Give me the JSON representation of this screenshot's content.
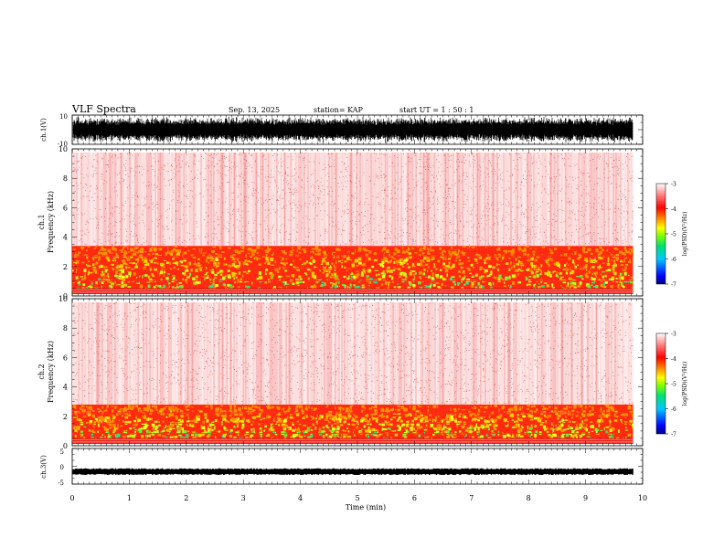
{
  "header": {
    "title": "VLF Spectra",
    "date": "Sep. 13, 2025",
    "station": "station= KAP",
    "start": "start  UT =   1 : 50 : 1"
  },
  "chart_data": [
    {
      "type": "line",
      "name": "ch1-waveform",
      "ylabel": "ch.1(V)",
      "ylim": [
        -10,
        10
      ],
      "ytick_labels": [
        "10",
        "-10"
      ],
      "xlim": [
        0,
        10
      ],
      "x_data_end": 9.83,
      "description_values": {
        "typical_min": -9,
        "typical_max": 9
      }
    },
    {
      "type": "heatmap",
      "name": "ch1-spectrogram",
      "ylabel": "ch.1",
      "ylabel2": "Frequency (kHz)",
      "ylim": [
        0,
        10
      ],
      "ytick_labels": [
        "0",
        "2",
        "4",
        "6",
        "8",
        "10"
      ],
      "yticks": [
        0,
        2,
        4,
        6,
        8,
        10
      ],
      "xlim": [
        0,
        10
      ],
      "x_data_end": 9.83,
      "band_top_khz": 3.4,
      "colorbar": {
        "label": "log(PSD)(V²/Hz)",
        "range": [
          -7,
          -3
        ],
        "tick_labels": [
          "-3",
          "-4",
          "-5",
          "-6",
          "-7"
        ],
        "ticks": [
          -3,
          -4,
          -5,
          -6,
          -7
        ]
      }
    },
    {
      "type": "heatmap",
      "name": "ch2-spectrogram",
      "ylabel": "ch.2",
      "ylabel2": "Frequency (kHz)",
      "ylim": [
        0,
        10
      ],
      "ytick_labels": [
        "0",
        "2",
        "4",
        "6",
        "8",
        "10"
      ],
      "yticks": [
        0,
        2,
        4,
        6,
        8,
        10
      ],
      "xlim": [
        0,
        10
      ],
      "x_data_end": 9.83,
      "band_top_khz": 2.8,
      "colorbar": {
        "label": "log(PSD)(V²/Hz)",
        "range": [
          -7,
          -3
        ],
        "tick_labels": [
          "-3",
          "-4",
          "-5",
          "-6",
          "-7"
        ],
        "ticks": [
          -3,
          -4,
          -5,
          -6,
          -7
        ]
      }
    },
    {
      "type": "line",
      "name": "ch3-waveform",
      "ylabel": "ch.3(V)",
      "ylim": [
        -5,
        5
      ],
      "ytick_labels": [
        "5",
        "0",
        "-5"
      ],
      "yticks": [
        5,
        0,
        -5
      ],
      "xlim": [
        0,
        10
      ],
      "x_data_end": 9.83,
      "level": -1.5
    }
  ],
  "xaxis": {
    "label": "Time (min)",
    "ticks": [
      0,
      1,
      2,
      3,
      4,
      5,
      6,
      7,
      8,
      9,
      10
    ],
    "tick_labels": [
      "0",
      "1",
      "2",
      "3",
      "4",
      "5",
      "6",
      "7",
      "8",
      "9",
      "10"
    ]
  },
  "colors": {
    "colorbar_stops": [
      "#000080",
      "#0000ff",
      "#00c8ff",
      "#00e070",
      "#80ff00",
      "#ffff00",
      "#ff8000",
      "#ff0000",
      "#ff8080",
      "#ffffff"
    ]
  }
}
